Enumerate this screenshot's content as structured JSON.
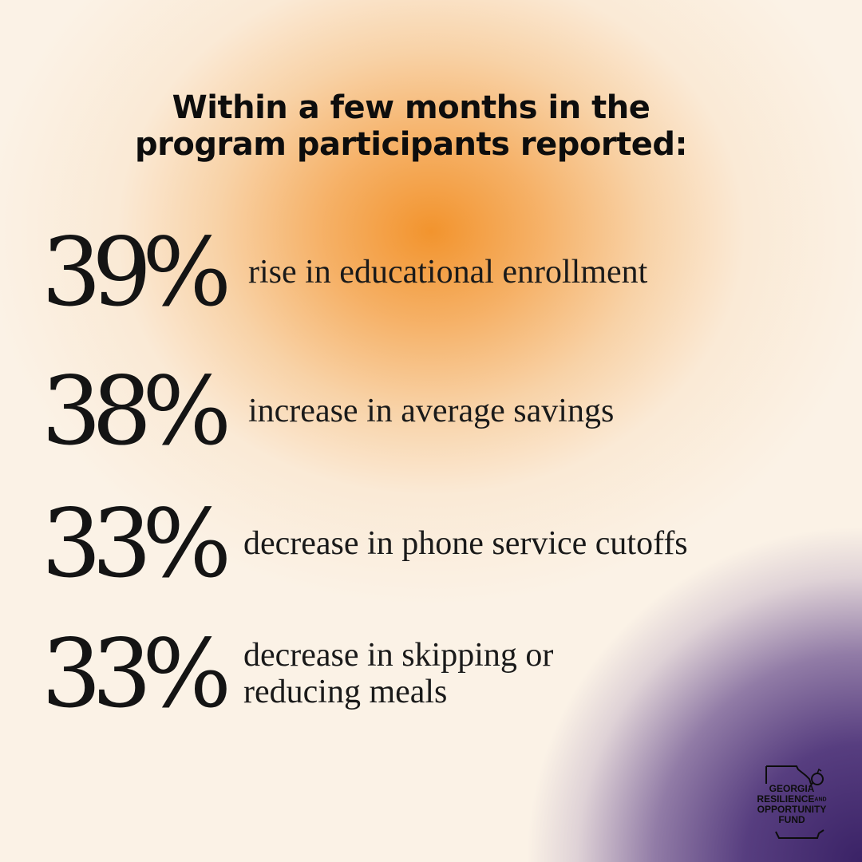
{
  "headline": {
    "line1": "Within a few months in the",
    "line2": "program participants reported:"
  },
  "stats": [
    {
      "value": "39%",
      "lines": [
        "rise in educational enrollment"
      ]
    },
    {
      "value": "38%",
      "lines": [
        "increase in average savings"
      ]
    },
    {
      "value": "33%",
      "lines": [
        "decrease in phone service cutoffs"
      ]
    },
    {
      "value": "33%",
      "lines": [
        "decrease in skipping or",
        "reducing meals"
      ]
    }
  ],
  "logo": {
    "line1": "GEORGIA",
    "line2": "RESILIENCE",
    "and": "AND",
    "line3": "OPPORTUNITY",
    "line4": "FUND",
    "icon": "georgia-state-outline-icon"
  },
  "colors": {
    "background": "#fbf2e6",
    "orange_glow": "#f2922a",
    "purple_corner": "#3a2266",
    "text": "#0d0d0d"
  }
}
